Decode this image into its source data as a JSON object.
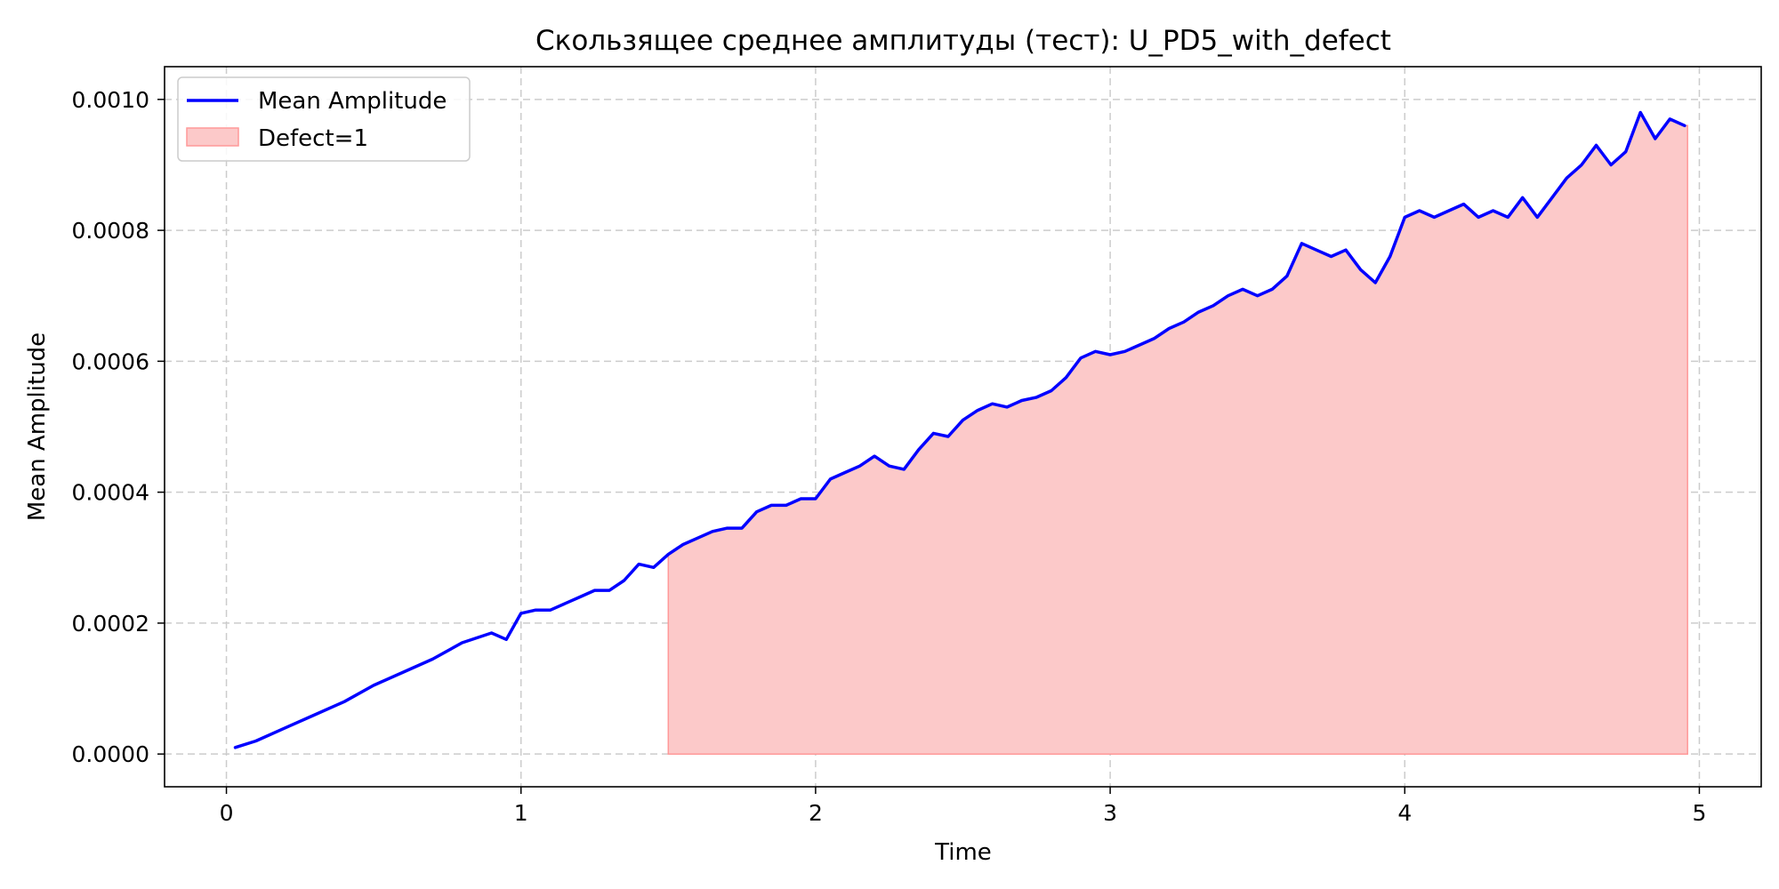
{
  "chart_data": {
    "type": "line",
    "title": "Скользящее среднее амплитуды (тест): U_PD5_with_defect",
    "xlabel": "Time",
    "ylabel": "Mean Amplitude",
    "xlim": [
      -0.21,
      5.21
    ],
    "ylim": [
      -5e-05,
      0.00105
    ],
    "x_ticks": [
      0,
      1,
      2,
      3,
      4,
      5
    ],
    "x_tick_labels": [
      "0",
      "1",
      "2",
      "3",
      "4",
      "5"
    ],
    "y_ticks": [
      0,
      0.0002,
      0.0004,
      0.0006,
      0.0008,
      0.001
    ],
    "y_tick_labels": [
      "0.0000",
      "0.0002",
      "0.0004",
      "0.0006",
      "0.0008",
      "0.0010"
    ],
    "grid": true,
    "legend_position": "top-left",
    "colors": {
      "line": "#0000ff",
      "defect_fill": "#fcc9c9",
      "defect_edge": "#ff9999",
      "grid": "#cccccc",
      "axes": "#000000"
    },
    "series": [
      {
        "name": "Mean Amplitude",
        "x": [
          0.03,
          0.1,
          0.2,
          0.3,
          0.4,
          0.5,
          0.6,
          0.7,
          0.8,
          0.9,
          0.95,
          1.0,
          1.05,
          1.1,
          1.15,
          1.2,
          1.25,
          1.3,
          1.35,
          1.4,
          1.45,
          1.5,
          1.55,
          1.6,
          1.65,
          1.7,
          1.75,
          1.8,
          1.85,
          1.9,
          1.95,
          2.0,
          2.05,
          2.1,
          2.15,
          2.2,
          2.25,
          2.3,
          2.35,
          2.4,
          2.45,
          2.5,
          2.55,
          2.6,
          2.65,
          2.7,
          2.75,
          2.8,
          2.85,
          2.9,
          2.95,
          3.0,
          3.05,
          3.1,
          3.15,
          3.2,
          3.25,
          3.3,
          3.35,
          3.4,
          3.45,
          3.5,
          3.55,
          3.6,
          3.65,
          3.7,
          3.75,
          3.8,
          3.85,
          3.9,
          3.95,
          4.0,
          4.05,
          4.1,
          4.15,
          4.2,
          4.25,
          4.3,
          4.35,
          4.4,
          4.45,
          4.5,
          4.55,
          4.6,
          4.65,
          4.7,
          4.75,
          4.8,
          4.85,
          4.9,
          4.95
        ],
        "y": [
          1e-05,
          2e-05,
          4e-05,
          6e-05,
          8e-05,
          0.000105,
          0.000125,
          0.000145,
          0.00017,
          0.000185,
          0.000175,
          0.000215,
          0.00022,
          0.00022,
          0.00023,
          0.00024,
          0.00025,
          0.00025,
          0.000265,
          0.00029,
          0.000285,
          0.000305,
          0.00032,
          0.00033,
          0.00034,
          0.000345,
          0.000345,
          0.00037,
          0.00038,
          0.00038,
          0.00039,
          0.00039,
          0.00042,
          0.00043,
          0.00044,
          0.000455,
          0.00044,
          0.000435,
          0.000465,
          0.00049,
          0.000485,
          0.00051,
          0.000525,
          0.000535,
          0.00053,
          0.00054,
          0.000545,
          0.000555,
          0.000575,
          0.000605,
          0.000615,
          0.00061,
          0.000615,
          0.000625,
          0.000635,
          0.00065,
          0.00066,
          0.000675,
          0.000685,
          0.0007,
          0.00071,
          0.0007,
          0.00071,
          0.00073,
          0.00078,
          0.00077,
          0.00076,
          0.00077,
          0.00074,
          0.00072,
          0.00076,
          0.00082,
          0.00083,
          0.00082,
          0.00083,
          0.00084,
          0.00082,
          0.00083,
          0.00082,
          0.00085,
          0.00082,
          0.00085,
          0.00088,
          0.0009,
          0.00093,
          0.0009,
          0.00092,
          0.00098,
          0.00094,
          0.00097,
          0.00096
        ]
      },
      {
        "name": "Defect=1",
        "type": "area",
        "x_range": [
          1.5,
          4.96
        ]
      }
    ]
  }
}
